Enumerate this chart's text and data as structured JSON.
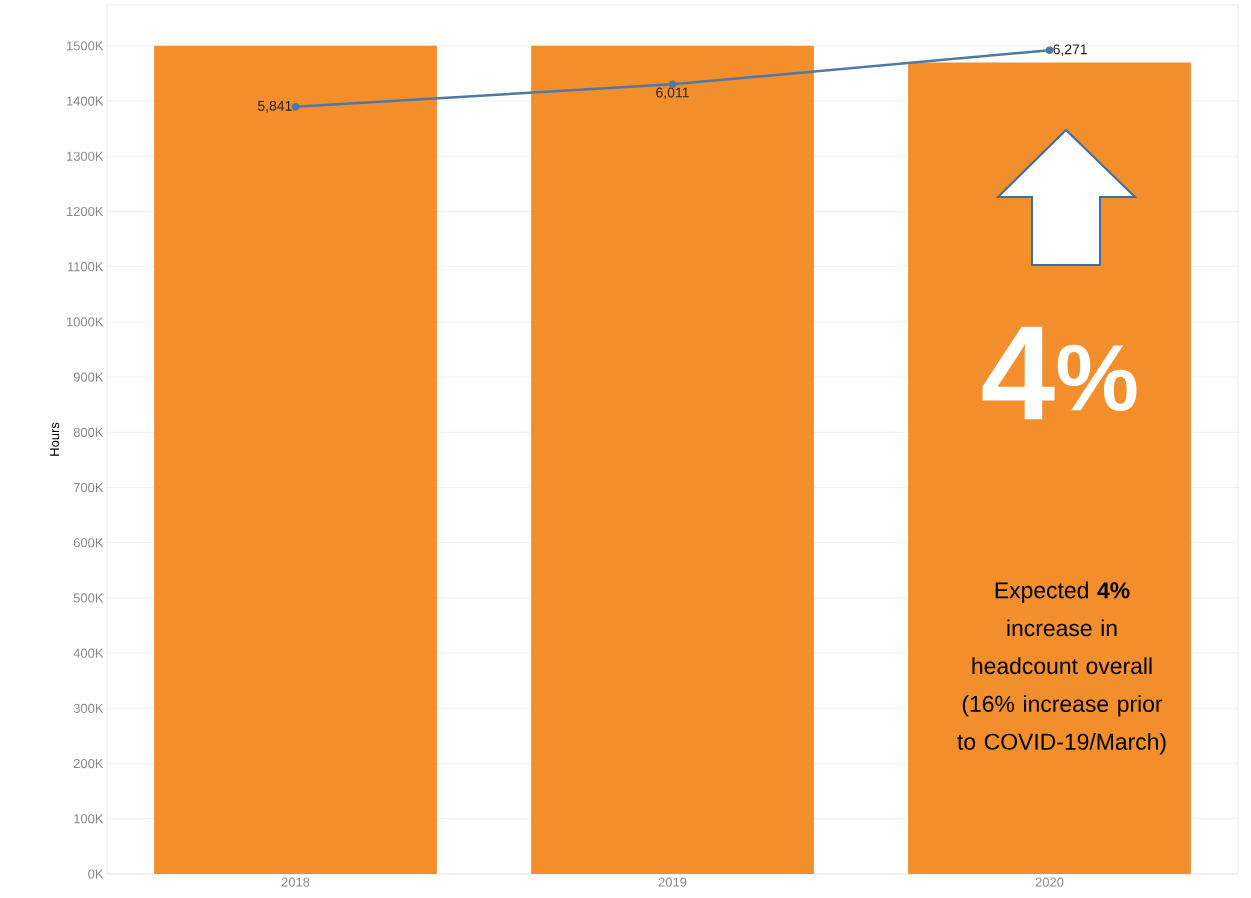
{
  "chart_data": {
    "type": "bar",
    "ylabel": "Hours",
    "categories": [
      "2018",
      "2019",
      "2020"
    ],
    "series": [
      {
        "color": "#f28e2b",
        "values": [
          1500000,
          1500000,
          1470000
        ]
      },
      {
        "type": "line",
        "axis": "y2",
        "color": "#4e79a7",
        "marker": "circle",
        "values": [
          5841,
          6011,
          6271
        ],
        "value_labels": [
          "5,841",
          "6,011",
          "6,271"
        ]
      }
    ],
    "ylim": [
      0,
      1574000
    ],
    "yticks": [
      {
        "value": 0,
        "label": "0K"
      },
      {
        "value": 100000,
        "label": "100K"
      },
      {
        "value": 200000,
        "label": "200K"
      },
      {
        "value": 300000,
        "label": "300K"
      },
      {
        "value": 400000,
        "label": "400K"
      },
      {
        "value": 500000,
        "label": "500K"
      },
      {
        "value": 600000,
        "label": "600K"
      },
      {
        "value": 700000,
        "label": "700K"
      },
      {
        "value": 800000,
        "label": "800K"
      },
      {
        "value": 900000,
        "label": "900K"
      },
      {
        "value": 1000000,
        "label": "1000K"
      },
      {
        "value": 1100000,
        "label": "1100K"
      },
      {
        "value": 1200000,
        "label": "1200K"
      },
      {
        "value": 1300000,
        "label": "1300K"
      },
      {
        "value": 1400000,
        "label": "1400K"
      },
      {
        "value": 1500000,
        "label": "1500K"
      }
    ],
    "grid": "y",
    "annotations": [
      "4$^{%}$",
      "Expected **4%** increase in headcount overall (16% increase prior to COVID-19/March)"
    ]
  }
}
